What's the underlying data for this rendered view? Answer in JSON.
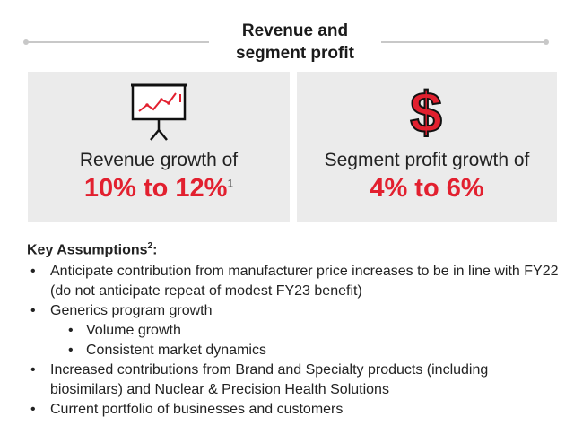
{
  "header": {
    "title_line1": "Revenue and",
    "title_line2": "segment profit"
  },
  "panels": [
    {
      "label": "Revenue growth of",
      "value": "10% to 12%",
      "footnote": "1",
      "icon": "chart-presentation-icon"
    },
    {
      "label": "Segment profit growth of",
      "value": "4% to 6%",
      "icon": "dollar-sign-icon"
    }
  ],
  "assumptions": {
    "heading": "Key Assumptions",
    "heading_footnote": "2",
    "heading_suffix": ":",
    "items": [
      "Anticipate contribution from manufacturer price increases to be in line with FY22 (do not anticipate repeat of modest FY23 benefit)",
      "Generics program growth",
      "Increased contributions from Brand and Specialty products (including biosimilars) and Nuclear & Precision Health Solutions",
      "Current portfolio of businesses and customers"
    ],
    "sub_items": [
      "Volume growth",
      "Consistent market dynamics"
    ]
  },
  "colors": {
    "accent": "#e2202f",
    "panel_bg": "#ebebeb",
    "rule": "#c8c8c8"
  }
}
